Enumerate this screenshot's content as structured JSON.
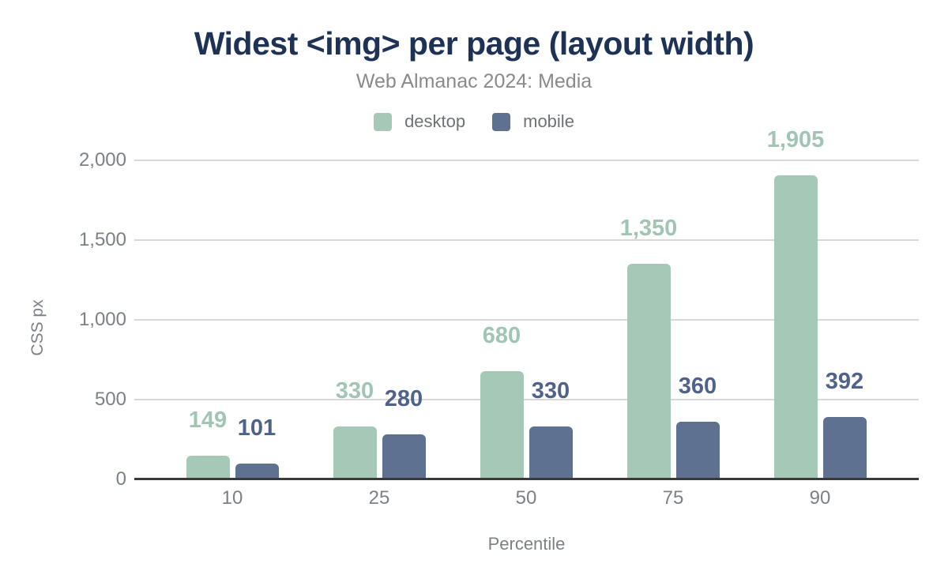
{
  "title": "Widest <img> per page (layout width)",
  "subtitle": "Web Almanac 2024: Media",
  "legend": [
    {
      "label": "desktop",
      "color": "#a6c9b7"
    },
    {
      "label": "mobile",
      "color": "#5f7190"
    }
  ],
  "chart_data": {
    "type": "bar",
    "title": "Widest <img> per page (layout width)",
    "subtitle": "Web Almanac 2024: Media",
    "categories": [
      "10",
      "25",
      "50",
      "75",
      "90"
    ],
    "series": [
      {
        "name": "desktop",
        "color": "#a6c9b7",
        "label_color": "#a0c6b3",
        "values": [
          149,
          330,
          680,
          1350,
          1905
        ],
        "labels": [
          "149",
          "330",
          "680",
          "1,350",
          "1,905"
        ]
      },
      {
        "name": "mobile",
        "color": "#5f7190",
        "label_color": "#4f628b",
        "values": [
          101,
          280,
          330,
          360,
          392
        ],
        "labels": [
          "101",
          "280",
          "330",
          "360",
          "392"
        ]
      }
    ],
    "xlabel": "Percentile",
    "ylabel": "CSS px",
    "ylim": [
      0,
      2000
    ],
    "yticks": [
      {
        "value": 0,
        "label": "0"
      },
      {
        "value": 500,
        "label": "500"
      },
      {
        "value": 1000,
        "label": "1,000"
      },
      {
        "value": 1500,
        "label": "1,500"
      },
      {
        "value": 2000,
        "label": "2,000"
      }
    ],
    "grid": true,
    "legend_position": "top"
  },
  "colors": {
    "title": "#1e3256",
    "axis_text": "#7c8087",
    "gridline": "#d8d8d8",
    "baseline": "#3a3a3a",
    "background": "#ffffff"
  }
}
